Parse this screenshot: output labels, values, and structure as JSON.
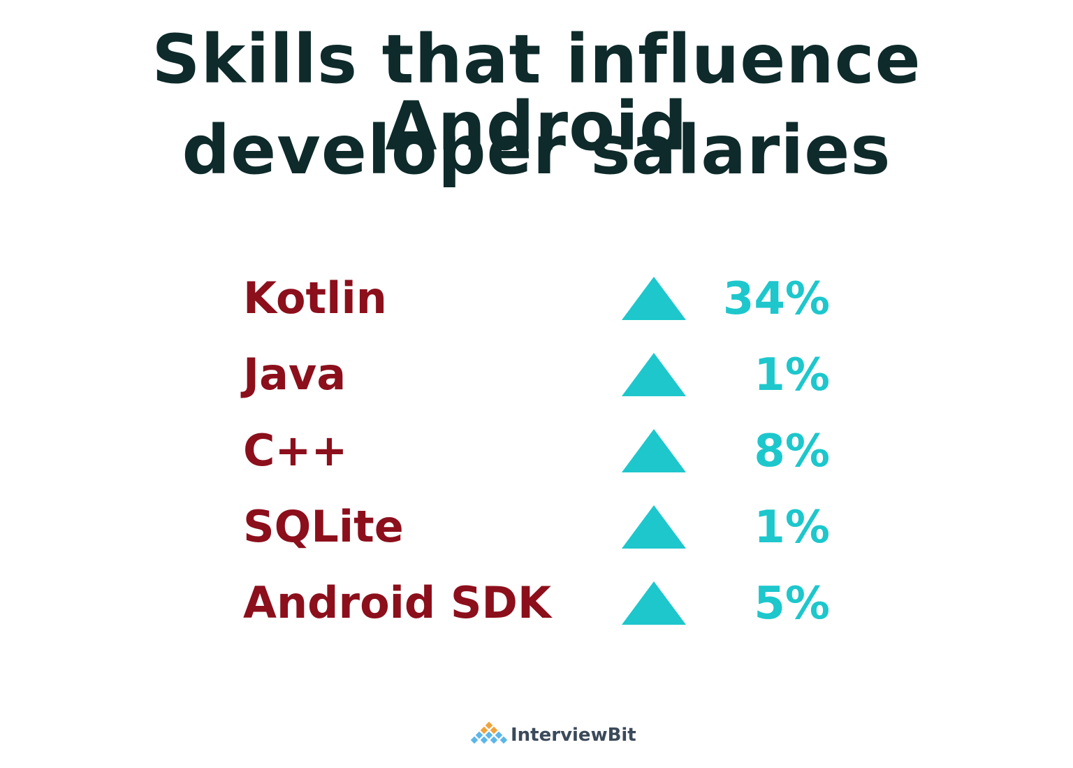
{
  "header": {
    "title_lines": [
      "Skills that influence Android",
      "developer salaries"
    ]
  },
  "skills": [
    {
      "name": "Kotlin",
      "change": "34%"
    },
    {
      "name": "Java",
      "change": "1%"
    },
    {
      "name": "C++",
      "change": "8%"
    },
    {
      "name": "SQLite",
      "change": "1%"
    },
    {
      "name": "Android SDK",
      "change": "5%"
    }
  ],
  "footer": {
    "brand": "InterviewBit"
  }
}
